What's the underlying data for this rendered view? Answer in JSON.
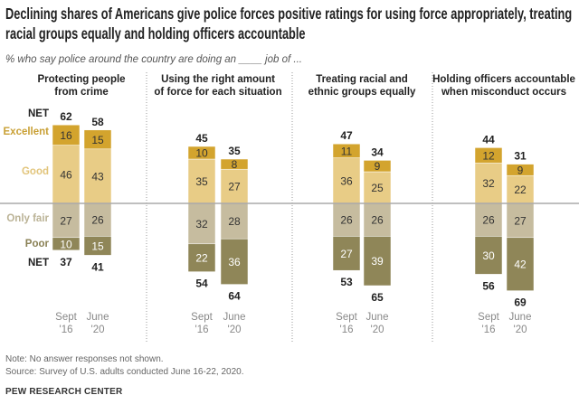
{
  "chart_data": {
    "type": "bar",
    "stacked": "diverging",
    "title": "Declining shares of Americans give police forces positive ratings for using force appropriately, treating racial groups equally and holding officers accountable",
    "subtitle": "% who say police around the country are doing an ____ job of ...",
    "categories": [
      "Sept '16",
      "June '20"
    ],
    "category_lines": [
      [
        "Sept",
        "'16"
      ],
      [
        "June",
        "'20"
      ]
    ],
    "legend": {
      "net": "NET",
      "excellent": "Excellent",
      "good": "Good",
      "only_fair": "Only fair",
      "poor": "Poor"
    },
    "colors": {
      "excellent": "#d3a42e",
      "good": "#e8cc86",
      "only_fair": "#c6bc9f",
      "poor": "#8f8658",
      "excellent_label": "#c9a035",
      "good_label": "#e2c57c",
      "only_fair_label": "#bbb396",
      "poor_label": "#8a8155"
    },
    "panels": [
      {
        "title": [
          "Protecting people",
          "from crime"
        ],
        "excellent": [
          16,
          15
        ],
        "good": [
          46,
          43
        ],
        "only_fair": [
          27,
          26
        ],
        "poor": [
          10,
          15
        ],
        "net_positive": [
          62,
          58
        ],
        "net_negative": [
          37,
          41
        ]
      },
      {
        "title": [
          "Using the right amount",
          "of force for each situation"
        ],
        "excellent": [
          10,
          8
        ],
        "good": [
          35,
          27
        ],
        "only_fair": [
          32,
          28
        ],
        "poor": [
          22,
          36
        ],
        "net_positive": [
          45,
          35
        ],
        "net_negative": [
          54,
          64
        ]
      },
      {
        "title": [
          "Treating racial and",
          "ethnic groups equally"
        ],
        "excellent": [
          11,
          9
        ],
        "good": [
          36,
          25
        ],
        "only_fair": [
          26,
          26
        ],
        "poor": [
          27,
          39
        ],
        "net_positive": [
          47,
          34
        ],
        "net_negative": [
          53,
          65
        ]
      },
      {
        "title": [
          "Holding officers accountable",
          "when misconduct occurs"
        ],
        "excellent": [
          12,
          9
        ],
        "good": [
          32,
          22
        ],
        "only_fair": [
          26,
          27
        ],
        "poor": [
          30,
          42
        ],
        "net_positive": [
          44,
          31
        ],
        "net_negative": [
          56,
          69
        ]
      }
    ]
  },
  "notes": {
    "note": "Note: No answer responses not shown.",
    "source": "Source: Survey of U.S. adults conducted June 16-22, 2020.",
    "org": "PEW RESEARCH CENTER"
  }
}
